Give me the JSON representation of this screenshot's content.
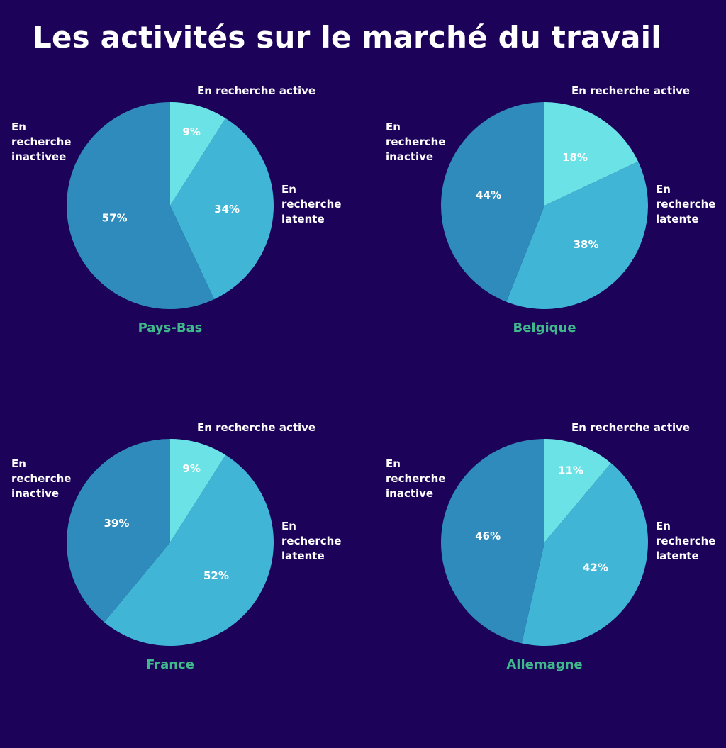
{
  "title": "Les activités sur le marché du travail",
  "colors": {
    "background": "#1c0259",
    "active": "#6be3e6",
    "latente": "#41b5d6",
    "inactive": "#2e8bbb",
    "country": "#3fb88b",
    "text": "#ffffff"
  },
  "chart_data": [
    {
      "type": "pie",
      "title": "Pays-Bas",
      "labels": {
        "active": "En recherche active",
        "latente": [
          "En",
          "recherche",
          "latente"
        ],
        "inactive": [
          "En",
          "recherche",
          "inactivee"
        ]
      },
      "slices": [
        {
          "key": "active",
          "value": 9,
          "label": "9%"
        },
        {
          "key": "latente",
          "value": 34,
          "label": "34%"
        },
        {
          "key": "inactive",
          "value": 57,
          "label": "57%"
        }
      ]
    },
    {
      "type": "pie",
      "title": "Belgique",
      "labels": {
        "active": "En recherche active",
        "latente": [
          "En",
          "recherche",
          "latente"
        ],
        "inactive": [
          "En",
          "recherche",
          "inactive"
        ]
      },
      "slices": [
        {
          "key": "active",
          "value": 18,
          "label": "18%"
        },
        {
          "key": "latente",
          "value": 38,
          "label": "38%"
        },
        {
          "key": "inactive",
          "value": 44,
          "label": "44%"
        }
      ]
    },
    {
      "type": "pie",
      "title": "France",
      "labels": {
        "active": "En recherche active",
        "latente": [
          "En",
          "recherche",
          "latente"
        ],
        "inactive": [
          "En",
          "recherche",
          "inactive"
        ]
      },
      "slices": [
        {
          "key": "active",
          "value": 9,
          "label": "9%"
        },
        {
          "key": "latente",
          "value": 52,
          "label": "52%"
        },
        {
          "key": "inactive",
          "value": 39,
          "label": "39%"
        }
      ]
    },
    {
      "type": "pie",
      "title": "Allemagne",
      "labels": {
        "active": "En recherche active",
        "latente": [
          "En",
          "recherche",
          "latente"
        ],
        "inactive": [
          "En",
          "recherche",
          "inactive"
        ]
      },
      "slices": [
        {
          "key": "active",
          "value": 11,
          "label": "11%"
        },
        {
          "key": "latente",
          "value": 42,
          "label": "42%"
        },
        {
          "key": "inactive",
          "value": 46,
          "label": "46%"
        }
      ]
    }
  ]
}
